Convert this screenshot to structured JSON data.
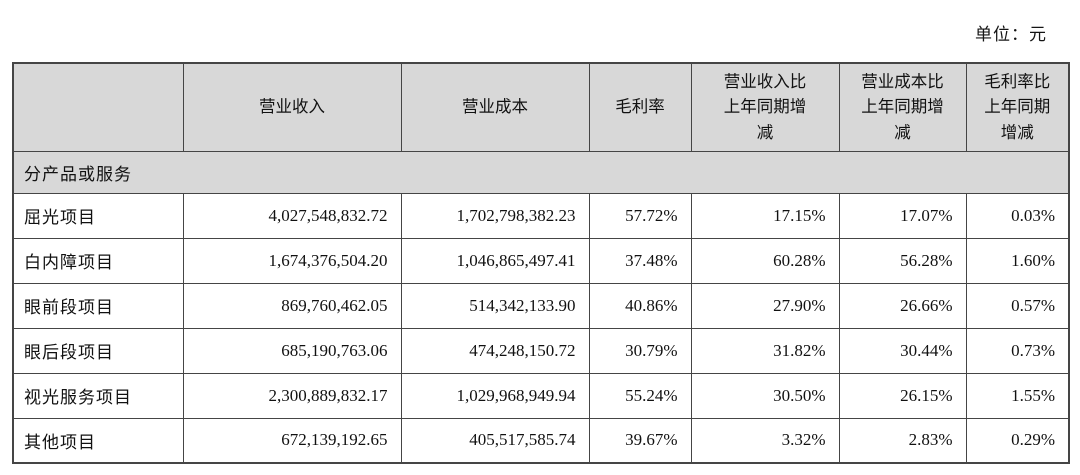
{
  "meta": {
    "unit_label": "单位：元"
  },
  "table": {
    "columns": {
      "label": "",
      "revenue": "营业收入",
      "cost": "营业成本",
      "margin": "毛利率",
      "revenue_yoy": "营业收入比\n上年同期增\n减",
      "cost_yoy": "营业成本比\n上年同期增\n减",
      "margin_yoy": "毛利率比\n上年同期\n增减"
    },
    "section_label": "分产品或服务",
    "rows": [
      {
        "label": "屈光项目",
        "values": [
          "4,027,548,832.72",
          "1,702,798,382.23",
          "57.72%",
          "17.15%",
          "17.07%",
          "0.03%"
        ]
      },
      {
        "label": "白内障项目",
        "values": [
          "1,674,376,504.20",
          "1,046,865,497.41",
          "37.48%",
          "60.28%",
          "56.28%",
          "1.60%"
        ]
      },
      {
        "label": "眼前段项目",
        "values": [
          "869,760,462.05",
          "514,342,133.90",
          "40.86%",
          "27.90%",
          "26.66%",
          "0.57%"
        ]
      },
      {
        "label": "眼后段项目",
        "values": [
          "685,190,763.06",
          "474,248,150.72",
          "30.79%",
          "31.82%",
          "30.44%",
          "0.73%"
        ]
      },
      {
        "label": "视光服务项目",
        "values": [
          "2,300,889,832.17",
          "1,029,968,949.94",
          "55.24%",
          "30.50%",
          "26.15%",
          "1.55%"
        ]
      },
      {
        "label": "其他项目",
        "values": [
          "672,139,192.65",
          "405,517,585.74",
          "39.67%",
          "3.32%",
          "2.83%",
          "0.29%"
        ]
      }
    ],
    "colors": {
      "header_background": "#d8d8d8",
      "border": "#454545",
      "text": "#111111",
      "row_background": "#ffffff"
    }
  }
}
